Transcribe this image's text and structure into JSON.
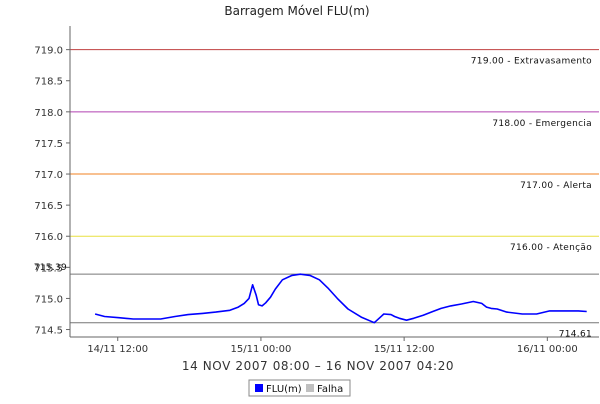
{
  "chart_data": {
    "type": "line",
    "title": "Barragem Móvel FLU(m)",
    "xlabel": "14 NOV 2007 08:00 – 16 NOV 2007 04:20",
    "ylabel": "",
    "ylim": [
      714.38,
      719.38
    ],
    "yticks": [
      714.5,
      715.0,
      715.5,
      716.0,
      716.5,
      717.0,
      717.5,
      718.0,
      718.5,
      719.0
    ],
    "ytick_labels": [
      "714.5",
      "715.0",
      "715.5",
      "716.0",
      "716.5",
      "717.0",
      "717.5",
      "718.0",
      "718.5",
      "719.0"
    ],
    "xlim_hours": [
      0,
      44.33
    ],
    "xticks_hours": [
      4,
      16,
      28,
      40
    ],
    "xtick_labels": [
      "14/11 12:00",
      "15/11 00:00",
      "15/11 12:00",
      "16/11 00:00"
    ],
    "grid": false,
    "legend_position": "bottom",
    "thresholds": [
      {
        "value": 719.0,
        "label": "719.00 - Extravasamento",
        "color": "#c04040"
      },
      {
        "value": 718.0,
        "label": "718.00 - Emergencia",
        "color": "#b040b0"
      },
      {
        "value": 717.0,
        "label": "717.00 - Alerta",
        "color": "#f08020"
      },
      {
        "value": 716.0,
        "label": "716.00 - Atenção",
        "color": "#e8e040"
      }
    ],
    "max_line": {
      "value": 715.39,
      "label": "715.39",
      "color": "#777777"
    },
    "min_line": {
      "value": 714.61,
      "label": "714.61",
      "color": "#777777"
    },
    "series": [
      {
        "name": "FLU(m)",
        "color": "#0000ff",
        "x": [
          2.1,
          2.9,
          4.1,
          5.3,
          6.4,
          7.6,
          8.8,
          9.9,
          11.1,
          12.2,
          13.4,
          14.1,
          14.6,
          15.0,
          15.3,
          15.6,
          15.8,
          16.1,
          16.4,
          16.8,
          17.2,
          17.8,
          18.6,
          19.3,
          20.1,
          20.9,
          21.6,
          22.4,
          23.3,
          24.4,
          25.5,
          26.3,
          26.9,
          27.2,
          27.6,
          28.2,
          28.8,
          29.6,
          30.4,
          31.1,
          31.9,
          32.8,
          33.8,
          34.5,
          34.9,
          35.3,
          35.8,
          36.6,
          37.9,
          39.1,
          40.2,
          41.0,
          41.8,
          42.6,
          43.3
        ],
        "y": [
          714.75,
          714.71,
          714.69,
          714.67,
          714.67,
          714.67,
          714.71,
          714.74,
          714.76,
          714.78,
          714.81,
          714.86,
          714.92,
          715.0,
          715.22,
          715.05,
          714.9,
          714.88,
          714.93,
          715.02,
          715.15,
          715.3,
          715.37,
          715.39,
          715.37,
          715.3,
          715.17,
          715.0,
          714.83,
          714.7,
          714.61,
          714.75,
          714.74,
          714.71,
          714.68,
          714.65,
          714.68,
          714.73,
          714.79,
          714.84,
          714.88,
          714.91,
          714.95,
          714.92,
          714.86,
          714.84,
          714.83,
          714.78,
          714.75,
          714.75,
          714.8,
          714.8,
          714.8,
          714.8,
          714.79
        ]
      }
    ],
    "legend": [
      {
        "name": "FLU(m)",
        "color": "#0000ff"
      },
      {
        "name": "Falha",
        "color": "#c0c0c0"
      }
    ]
  }
}
